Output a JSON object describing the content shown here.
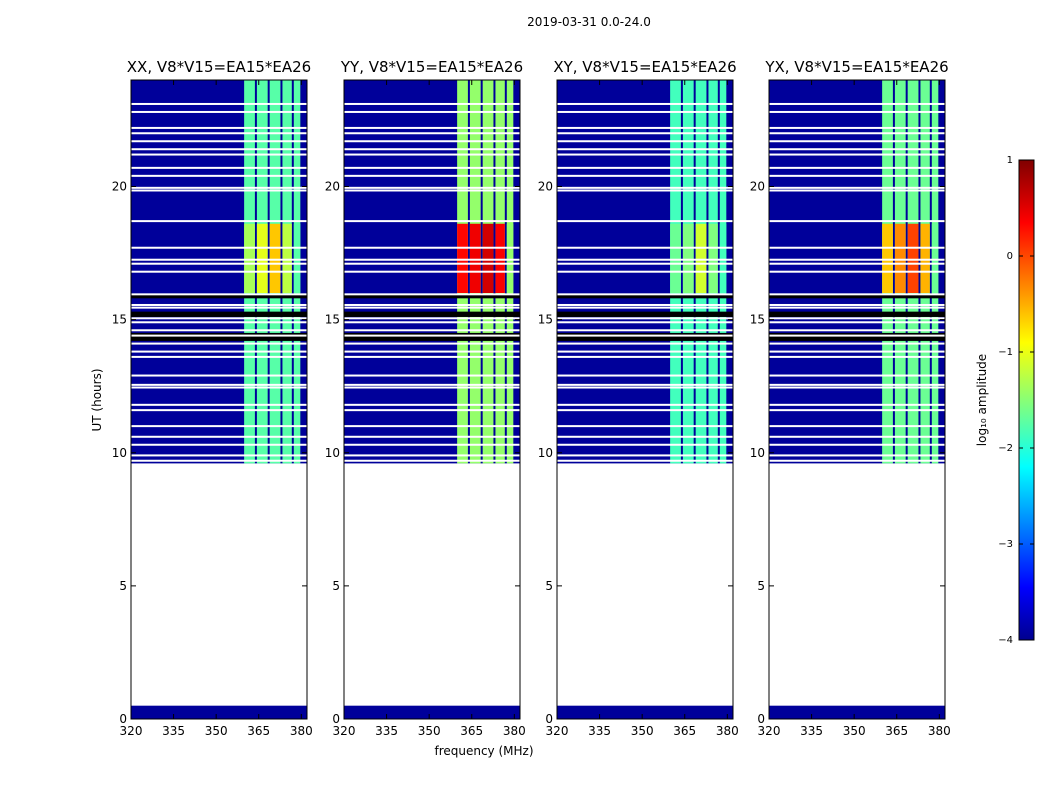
{
  "suptitle": "2019-03-31 0.0-24.0",
  "colors": {
    "background": "#00009a",
    "blank": "#ffffff"
  },
  "chart_data": {
    "type": "heatmap",
    "xlabel": "frequency (MHz)",
    "ylabel": "UT (hours)",
    "xlim": [
      320,
      382
    ],
    "ylim": [
      0,
      24
    ],
    "xticks": [
      320,
      335,
      350,
      365,
      380
    ],
    "yticks": [
      0,
      5,
      10,
      15,
      20
    ],
    "colorbar": {
      "label": "log₁₀ amplitude",
      "range": [
        -4,
        1
      ],
      "ticks": [
        1,
        0,
        -1,
        -2,
        -3,
        -4
      ],
      "tick_labels": [
        "1",
        "0",
        "−1",
        "−2",
        "−3",
        "−4"
      ]
    },
    "data_time_ranges": [
      [
        0.0,
        0.5
      ],
      [
        9.6,
        24.0
      ]
    ],
    "signal_band_mhz": [
      359.5,
      380.0
    ],
    "channel_edges_mhz": [
      359.5,
      364.0,
      368.5,
      373.0,
      377.0,
      380.0
    ],
    "gap_times": [
      9.7,
      9.9,
      10.3,
      10.6,
      11.0,
      11.6,
      11.8,
      12.45,
      12.55,
      12.9,
      13.6,
      13.8,
      14.1,
      14.4,
      14.6,
      14.9,
      15.05,
      15.45,
      15.55,
      15.95,
      16.8,
      17.1,
      17.25,
      17.7,
      18.7,
      19.85,
      19.95,
      20.4,
      20.7,
      21.2,
      21.4,
      21.7,
      22.0,
      22.2,
      22.8,
      23.1
    ],
    "dark_bands": [
      [
        14.2,
        14.5
      ],
      [
        15.1,
        15.3
      ],
      [
        15.8,
        15.95
      ]
    ],
    "burst_time_range": [
      16.0,
      18.6
    ],
    "panels": [
      {
        "title": "XX, V8*V15=EA15*EA26",
        "band_level": -1.7,
        "burst_levels": [
          -1.3,
          -1.0,
          -0.6,
          -1.2
        ]
      },
      {
        "title": "YY, V8*V15=EA15*EA26",
        "band_level": -1.4,
        "burst_levels": [
          0.35,
          0.45,
          0.6,
          0.4
        ]
      },
      {
        "title": "XY, V8*V15=EA15*EA26",
        "band_level": -1.8,
        "burst_levels": [
          -1.6,
          -1.5,
          -1.1,
          -1.5
        ]
      },
      {
        "title": "YX, V8*V15=EA15*EA26",
        "band_level": -1.6,
        "burst_levels": [
          -0.6,
          -0.3,
          0.05,
          -0.5
        ]
      }
    ]
  }
}
